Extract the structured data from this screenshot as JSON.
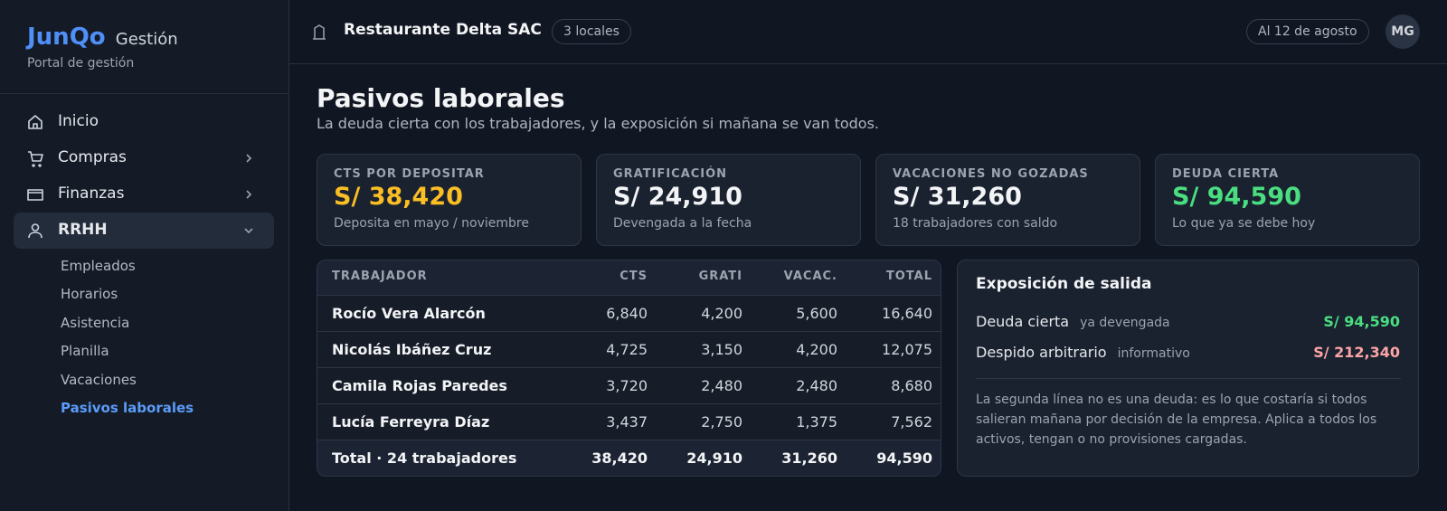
{
  "sidebar": {
    "brand": "JunQo",
    "brand_suffix": "Gestión",
    "tagline": "Portal de gestión",
    "nav": [
      {
        "label": "Inicio",
        "icon": "home"
      },
      {
        "label": "Compras",
        "icon": "cart",
        "chevron": "right"
      },
      {
        "label": "Finanzas",
        "icon": "card",
        "chevron": "right"
      },
      {
        "label": "RRHH",
        "icon": "user",
        "chevron": "down",
        "active": true
      }
    ],
    "subnav": [
      {
        "label": "Empleados"
      },
      {
        "label": "Horarios"
      },
      {
        "label": "Asistencia"
      },
      {
        "label": "Planilla"
      },
      {
        "label": "Vacaciones"
      },
      {
        "label": "Pasivos laborales",
        "active": true
      }
    ]
  },
  "topbar": {
    "company": "Restaurante Delta SAC",
    "locations": "3 locales",
    "date": "Al 12 de agosto",
    "avatar": "MG"
  },
  "header": {
    "title": "Pasivos laborales",
    "subtitle": "La deuda cierta con los trabajadores, y la exposición si mañana se van todos."
  },
  "cards": [
    {
      "label": "CTS POR DEPOSITAR",
      "value": "S/ 38,420",
      "note": "Deposita en mayo / noviembre",
      "color": "#fbbf24"
    },
    {
      "label": "GRATIFICACIÓN",
      "value": "S/ 24,910",
      "note": "Devengada a la fecha",
      "color": "#f3f4f6"
    },
    {
      "label": "VACACIONES NO GOZADAS",
      "value": "S/ 31,260",
      "note": "18 trabajadores con saldo",
      "color": "#f3f4f6"
    },
    {
      "label": "DEUDA CIERTA",
      "value": "S/ 94,590",
      "note": "Lo que ya se debe hoy",
      "color": "#4ade80"
    }
  ],
  "table": {
    "columns": [
      "TRABAJADOR",
      "CTS",
      "GRATI",
      "VACAC.",
      "TOTAL"
    ],
    "rows": [
      [
        "Rocío Vera Alarcón",
        "6,840",
        "4,200",
        "5,600",
        "16,640"
      ],
      [
        "Nicolás Ibáñez Cruz",
        "4,725",
        "3,150",
        "4,200",
        "12,075"
      ],
      [
        "Camila Rojas Paredes",
        "3,720",
        "2,480",
        "2,480",
        "8,680"
      ],
      [
        "Lucía Ferreyra Díaz",
        "3,437",
        "2,750",
        "1,375",
        "7,562"
      ]
    ],
    "total": [
      "Total · 24 trabajadores",
      "38,420",
      "24,910",
      "31,260",
      "94,590"
    ]
  },
  "panel": {
    "title": "Exposición de salida",
    "rows": [
      {
        "label": "Deuda cierta",
        "tag": "ya devengada",
        "value": "S/ 94,590",
        "color": "#4ade80"
      },
      {
        "label": "Despido arbitrario",
        "tag": "informativo",
        "value": "S/ 212,340",
        "color": "#fca5a5"
      }
    ],
    "note": "La segunda línea no es una deuda: es lo que costaría si todos salieran mañana por decisión de la empresa. Aplica a todos los activos, tengan o no provisiones cargadas."
  }
}
